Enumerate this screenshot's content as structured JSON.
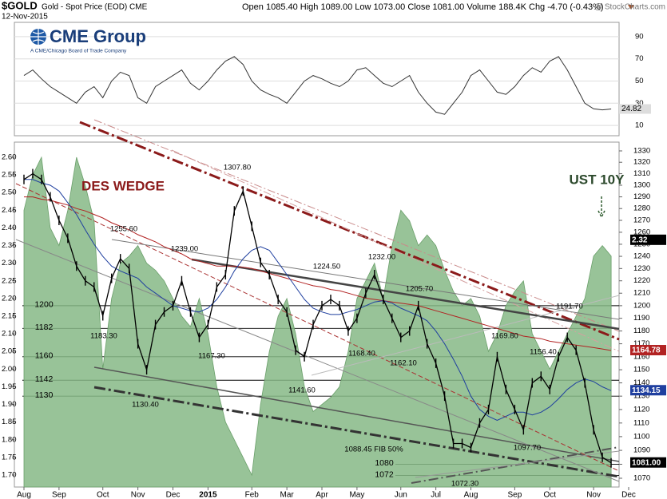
{
  "header": {
    "symbol": "$GOLD",
    "name": "Gold - Spot Price (EOD) CME",
    "date": "12-Nov-2015",
    "stats": "Open 1085.40 High 1089.00 Low 1073.00 Close 1081.00 Volume 188.4K Chg -4.70 (-0.43%)",
    "credit": "@ StockCharts.com",
    "logo": "CME Group",
    "logo_sub": "A CME/Chicago Board of Trade Company"
  },
  "chart_data": {
    "type": "stock",
    "log_scale": true,
    "categories": [
      "Aug",
      null,
      null,
      null,
      "Sep",
      null,
      null,
      null,
      null,
      "Oct",
      null,
      null,
      null,
      "Nov",
      null,
      null,
      null,
      "Dec",
      null,
      null,
      null,
      "2015",
      null,
      null,
      null,
      null,
      "Feb",
      null,
      null,
      null,
      "Mar",
      null,
      null,
      null,
      "Apr",
      null,
      null,
      null,
      "May",
      null,
      null,
      null,
      null,
      "Jun",
      null,
      null,
      null,
      "Jul",
      null,
      null,
      null,
      "Aug",
      null,
      null,
      null,
      null,
      "Sep",
      null,
      null,
      null,
      "Oct",
      null,
      null,
      null,
      null,
      "Nov",
      null,
      null,
      null,
      "Dec"
    ],
    "ylim": [
      1070,
      1330
    ],
    "yticks": [
      1070,
      1080,
      1090,
      1100,
      1110,
      1120,
      1130,
      1140,
      1150,
      1160,
      1170,
      1180,
      1190,
      1200,
      1210,
      1220,
      1230,
      1240,
      1250,
      1260,
      1270,
      1280,
      1290,
      1300,
      1310,
      1320,
      1330
    ],
    "y2lim": [
      1.7,
      2.6
    ],
    "y2ticks": [
      {
        "value": 1.7,
        "label": "1.70"
      },
      1.75,
      {
        "value": 1.8,
        "label": "1.80"
      },
      1.85,
      {
        "value": 1.9,
        "label": "1.90"
      },
      1.95,
      {
        "value": 2.0,
        "label": "2.00"
      },
      2.05,
      {
        "value": 2.1,
        "label": "2.10"
      },
      2.15,
      {
        "value": 2.2,
        "label": "2.20"
      },
      2.25,
      {
        "value": 2.3,
        "label": "2.30"
      },
      2.35,
      {
        "value": 2.4,
        "label": "2.40"
      },
      2.45,
      {
        "value": 2.5,
        "label": "2.50"
      },
      2.55,
      {
        "value": 2.6,
        "label": "2.60"
      }
    ],
    "series": [
      {
        "name": "UST 10Y",
        "axis": "y2",
        "color": "#86b886",
        "values": [
          2.45,
          2.55,
          2.6,
          2.4,
          2.35,
          2.45,
          2.6,
          2.52,
          2.42,
          2.0,
          2.2,
          2.3,
          2.32,
          2.35,
          2.3,
          2.28,
          2.25,
          2.2,
          2.15,
          2.12,
          2.2,
          2.1,
          1.95,
          1.85,
          1.8,
          1.75,
          1.7,
          1.9,
          2.05,
          2.15,
          2.2,
          2.1,
          1.95,
          1.88,
          1.9,
          1.92,
          1.95,
          2.05,
          2.2,
          2.25,
          2.3,
          2.2,
          2.35,
          2.45,
          2.42,
          2.35,
          2.38,
          2.35,
          2.28,
          2.22,
          2.18,
          2.2,
          2.15,
          2.05,
          2.1,
          2.18,
          2.22,
          2.25,
          2.1,
          2.05,
          2.0,
          2.05,
          2.1,
          2.15,
          2.2,
          2.32,
          2.35,
          2.32,
          null,
          null
        ]
      },
      {
        "color": "#b22222",
        "values": [
          1290,
          1290,
          1288,
          1287,
          1285,
          1283,
          1280,
          1278,
          1275,
          1272,
          1268,
          1265,
          1262,
          1258,
          1255,
          1252,
          1248,
          1245,
          1242,
          1238,
          1236,
          1234,
          1232,
          1232,
          1232,
          1231,
          1230,
          1228,
          1226,
          1224,
          1222,
          1220,
          1218,
          1216,
          1215,
          1213,
          1212,
          1210,
          1208,
          1206,
          1205,
          1204,
          1203,
          1202,
          1201,
          1200,
          1198,
          1196,
          1194,
          1192,
          1190,
          1188,
          1186,
          1184,
          1182,
          1180,
          1178,
          1176,
          1175,
          1174,
          1172,
          1171,
          1170,
          1169,
          1168,
          1167,
          1166,
          1164.78,
          null,
          null
        ]
      },
      {
        "color": "#1f3f9f",
        "values": [
          1305,
          1305,
          1302,
          1300,
          1295,
          1285,
          1275,
          1262,
          1250,
          1240,
          1232,
          1228,
          1225,
          1222,
          1215,
          1210,
          1205,
          1200,
          1198,
          1196,
          1195,
          1198,
          1205,
          1215,
          1228,
          1238,
          1245,
          1248,
          1245,
          1235,
          1225,
          1215,
          1205,
          1198,
          1195,
          1193,
          1193,
          1195,
          1197,
          1200,
          1203,
          1204,
          1202,
          1198,
          1195,
          1192,
          1188,
          1180,
          1170,
          1158,
          1145,
          1130,
          1120,
          1115,
          1112,
          1115,
          1118,
          1118,
          1116,
          1118,
          1122,
          1128,
          1135,
          1140,
          1143,
          1141,
          1137,
          1134.15,
          null,
          null
        ]
      },
      {
        "color": "#000000",
        "values": [
          1305,
          1310,
          1305,
          1290,
          1270,
          1255,
          1232,
          1220,
          1215,
          1192,
          1222,
          1238,
          1230,
          1170,
          1150,
          1185,
          1195,
          1200,
          1220,
          1195,
          1175,
          1185,
          1215,
          1225,
          1278,
          1295,
          1265,
          1235,
          1225,
          1205,
          1195,
          1165,
          1160,
          1185,
          1200,
          1205,
          1200,
          1180,
          1190,
          1210,
          1225,
          1205,
          1190,
          1175,
          1180,
          1200,
          1170,
          1155,
          1130,
          1095,
          1095,
          1092,
          1110,
          1120,
          1160,
          1135,
          1120,
          1105,
          1140,
          1145,
          1135,
          1160,
          1175,
          1165,
          1140,
          1105,
          1085,
          1081,
          null,
          null
        ],
        "value_labels": [
          null,
          null,
          null,
          null,
          null,
          null,
          null,
          null,
          null,
          null,
          null,
          null,
          null,
          null,
          null,
          null,
          null,
          null,
          null,
          null,
          null,
          null,
          null,
          null,
          null,
          null,
          null,
          null,
          null,
          null,
          null,
          null,
          null,
          null,
          null,
          null,
          null,
          null,
          null,
          null,
          null,
          null,
          null,
          null,
          null,
          null,
          null,
          null,
          null,
          null,
          null,
          null,
          null,
          null,
          null,
          null,
          null,
          null,
          null,
          null,
          null,
          null,
          null,
          null,
          null,
          null,
          null,
          "1081.00",
          null,
          null
        ]
      }
    ],
    "levels": [
      1200,
      1182,
      1160,
      1142,
      1130,
      1080,
      1072
    ],
    "annotations": [
      "1307.80",
      "1255.60",
      "1239.00",
      "1224.50",
      "1232.00",
      "1205.70",
      "1191.70",
      "1183.30",
      "1167.30",
      "1168.40",
      "1162.10",
      "1169.80",
      "1156.40",
      "1141.60",
      "1130.40",
      "1097.70",
      "1072.30",
      "1088.45 FIB 50%"
    ],
    "wedge_label": "DES WEDGE",
    "rsi": {
      "color": "#333333",
      "ylim": [
        0,
        100
      ],
      "yticks": [
        10,
        30,
        50,
        70,
        90
      ],
      "grid": true,
      "values": [
        55,
        60,
        52,
        45,
        40,
        35,
        30,
        40,
        45,
        35,
        50,
        58,
        55,
        35,
        30,
        45,
        50,
        55,
        60,
        48,
        42,
        50,
        60,
        68,
        72,
        65,
        50,
        42,
        38,
        35,
        30,
        40,
        50,
        55,
        52,
        48,
        45,
        50,
        60,
        62,
        55,
        48,
        45,
        50,
        55,
        40,
        30,
        22,
        20,
        30,
        40,
        55,
        60,
        50,
        40,
        38,
        45,
        55,
        62,
        58,
        68,
        72,
        60,
        45,
        30,
        25,
        24,
        24.82,
        null,
        null
      ]
    }
  }
}
